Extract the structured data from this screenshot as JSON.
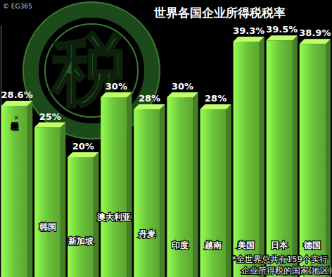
{
  "chart_data": {
    "type": "bar",
    "title": "世界各国企业所得税税率",
    "categories": [
      "世界各国平均税率*",
      "韩国",
      "新加坡",
      "澳大利亚",
      "丹麦",
      "印度",
      "越南",
      "美国",
      "日本",
      "德国"
    ],
    "values": [
      28.6,
      25,
      20,
      30,
      28,
      30,
      28,
      39.3,
      39.5,
      38.9
    ],
    "value_labels": [
      "28.6%",
      "25%",
      "20%",
      "30%",
      "28%",
      "30%",
      "28%",
      "39.3%",
      "39.5%",
      "38.9%"
    ],
    "color": "#6cc43a",
    "ylim": [
      0,
      42
    ],
    "yticks": [],
    "grid": false,
    "data_labels": true,
    "tick_labels": false,
    "annotations": [
      "© EG365",
      "税",
      "*全世界总共有159个实行",
      "企业所得税的国家(地区)"
    ]
  }
}
